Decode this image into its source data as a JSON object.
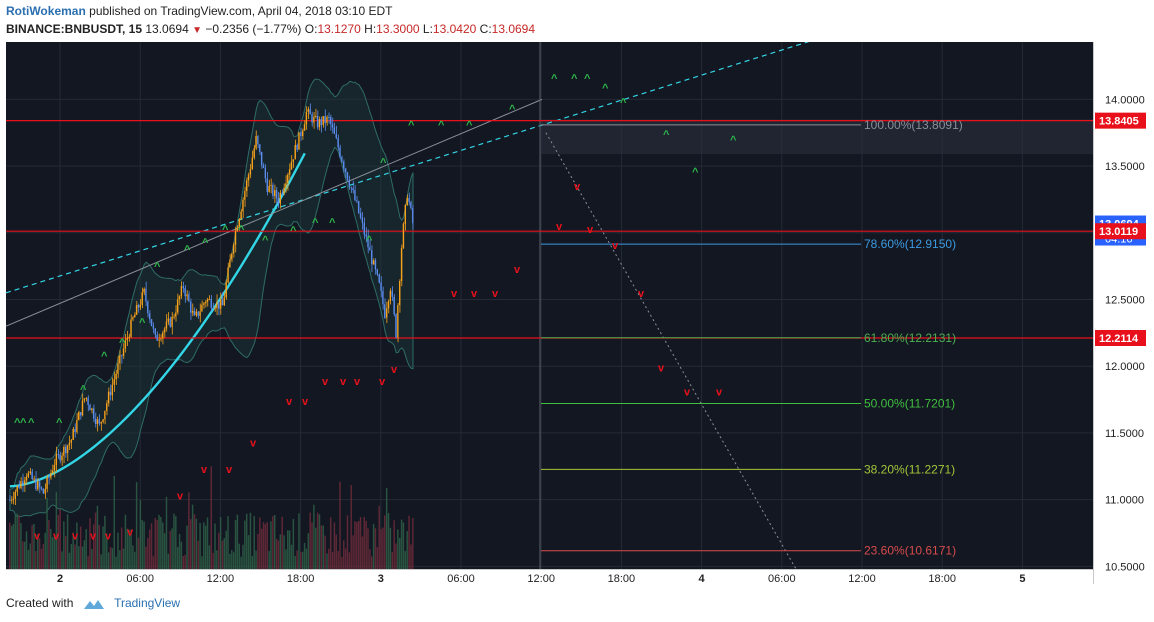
{
  "header": {
    "author": "RotiWokeman",
    "published_text": "published on TradingView.com, April 04, 2018 03:10 EDT",
    "symbol": "BINANCE:BNBUSDT, 15",
    "last": "13.0694",
    "change": "−0.2356 (−1.77%)",
    "o_label": "O:",
    "o": "13.1270",
    "h_label": "H:",
    "h": "13.3000",
    "l_label": "L:",
    "l": "13.0420",
    "c_label": "C:",
    "c": "13.0694"
  },
  "footer": {
    "created_with": "Created with",
    "brand": "TradingView"
  },
  "chart_data": {
    "type": "candlestick",
    "y_axis_ticks": [
      "14.0000",
      "13.5000",
      "13.0000",
      "12.5000",
      "12.0000",
      "11.5000",
      "11.0000",
      "10.5000"
    ],
    "y_range": [
      10.48,
      14.43
    ],
    "x_axis_ticks": [
      "2",
      "06:00",
      "12:00",
      "18:00",
      "3",
      "06:00",
      "12:00",
      "18:00",
      "4",
      "06:00",
      "12:00",
      "18:00",
      "5"
    ],
    "price_tags": [
      {
        "value": 13.8405,
        "label": "13.8405",
        "color": "#e8111b"
      },
      {
        "value": 13.0694,
        "label": "13.0694",
        "color": "#2962ff"
      },
      {
        "value": 13.0119,
        "label": "13.0119",
        "color": "#e8111b"
      },
      {
        "value": 12.2114,
        "label": "12.2114",
        "color": "#e8111b"
      }
    ],
    "countdown": "04:16",
    "fib_levels": [
      {
        "label": "100.00%(13.8091)",
        "value": 13.8091,
        "color": "#8a8f99"
      },
      {
        "label": "78.60%(12.9150)",
        "value": 12.915,
        "color": "#3d9ae0"
      },
      {
        "label": "61.80%(12.2131)",
        "value": 12.2131,
        "color": "#4caf50"
      },
      {
        "label": "50.00%(11.7201)",
        "value": 11.7201,
        "color": "#3fbf3f"
      },
      {
        "label": "38.20%(11.2271)",
        "value": 11.2271,
        "color": "#a4c639"
      },
      {
        "label": "23.60%(10.6171)",
        "value": 10.6171,
        "color": "#d84b4b"
      }
    ],
    "horizontal_lines": [
      13.8405,
      13.0119,
      12.2114
    ],
    "candle_path": [
      [
        0,
        11.0
      ],
      [
        6,
        11.2
      ],
      [
        12,
        11.05
      ],
      [
        16,
        11.28
      ],
      [
        22,
        11.45
      ],
      [
        27,
        11.78
      ],
      [
        32,
        11.55
      ],
      [
        38,
        11.95
      ],
      [
        44,
        12.35
      ],
      [
        48,
        12.55
      ],
      [
        52,
        12.2
      ],
      [
        58,
        12.35
      ],
      [
        62,
        12.6
      ],
      [
        66,
        12.35
      ],
      [
        70,
        12.5
      ],
      [
        76,
        12.45
      ],
      [
        80,
        12.95
      ],
      [
        86,
        13.5
      ],
      [
        88,
        13.7
      ],
      [
        92,
        13.35
      ],
      [
        96,
        13.25
      ],
      [
        100,
        13.5
      ],
      [
        104,
        13.75
      ],
      [
        106,
        13.9
      ],
      [
        110,
        13.82
      ],
      [
        114,
        13.85
      ],
      [
        118,
        13.6
      ],
      [
        124,
        13.2
      ],
      [
        128,
        12.9
      ],
      [
        132,
        12.6
      ],
      [
        134,
        12.4
      ],
      [
        136,
        12.6
      ],
      [
        138,
        12.25
      ],
      [
        140,
        12.9
      ],
      [
        142,
        13.3
      ],
      [
        144,
        13.07
      ]
    ],
    "bars_total": 216,
    "up_color": "#f7a21b",
    "down_color": "#5b8def"
  }
}
